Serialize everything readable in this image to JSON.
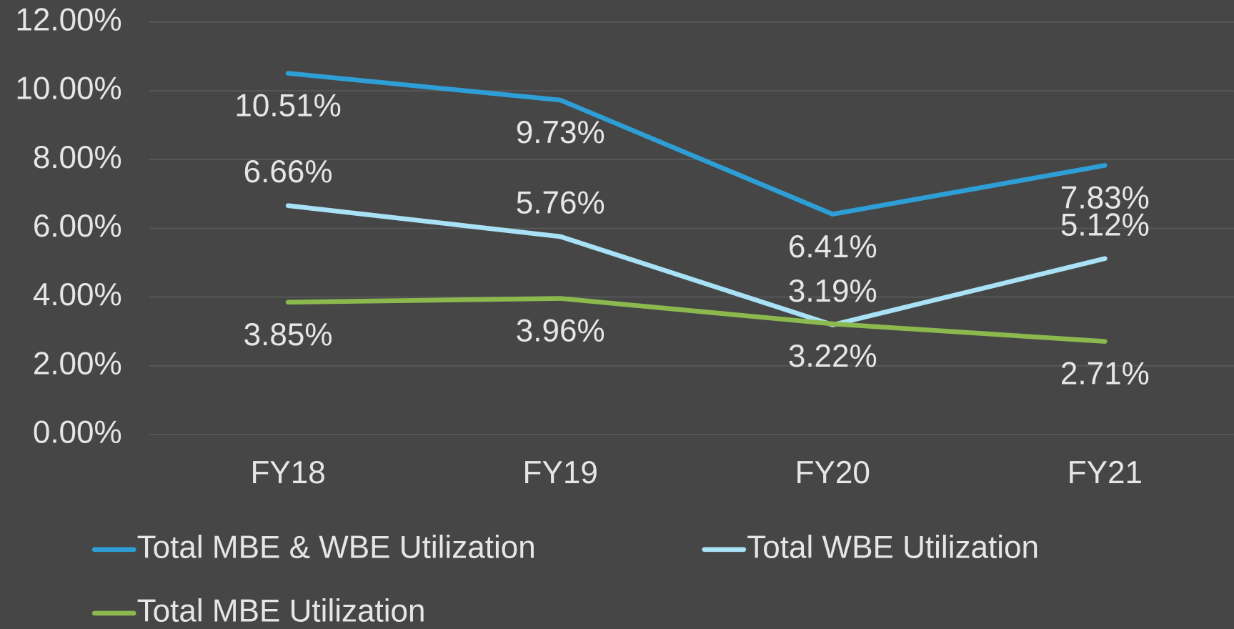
{
  "chart_data": {
    "type": "line",
    "categories": [
      "FY18",
      "FY19",
      "FY20",
      "FY21"
    ],
    "series": [
      {
        "name": "Total MBE & WBE Utilization",
        "color": "#2e9fd6",
        "values": [
          10.51,
          9.73,
          6.41,
          7.83
        ],
        "value_labels": [
          "10.51%",
          "9.73%",
          "6.41%",
          "7.83%"
        ]
      },
      {
        "name": "Total WBE Utilization",
        "color": "#a9e2f6",
        "values": [
          6.66,
          5.76,
          3.19,
          5.12
        ],
        "value_labels": [
          "6.66%",
          "5.76%",
          "3.19%",
          "5.12%"
        ]
      },
      {
        "name": "Total MBE Utilization",
        "color": "#8cb94e",
        "values": [
          3.85,
          3.96,
          3.22,
          2.71
        ],
        "value_labels": [
          "3.85%",
          "3.96%",
          "3.22%",
          "2.71%"
        ]
      }
    ],
    "ylim": [
      0,
      12
    ],
    "yticks": [
      {
        "value": 0,
        "label": "0.00%"
      },
      {
        "value": 2,
        "label": "2.00%"
      },
      {
        "value": 4,
        "label": "4.00%"
      },
      {
        "value": 6,
        "label": "6.00%"
      },
      {
        "value": 8,
        "label": "8.00%"
      },
      {
        "value": 10,
        "label": "10.00%"
      },
      {
        "value": 12,
        "label": "12.00%"
      }
    ],
    "grid": true,
    "legend": "bottom"
  }
}
